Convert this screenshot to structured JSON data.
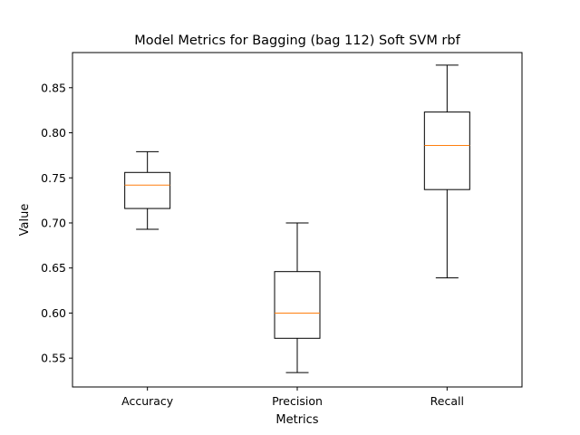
{
  "chart_data": {
    "type": "box",
    "title": "Model Metrics for Bagging (bag 112) Soft SVM rbf",
    "xlabel": "Metrics",
    "ylabel": "Value",
    "ylim": [
      0.518,
      0.889
    ],
    "yticks": [
      0.55,
      0.6,
      0.65,
      0.7,
      0.75,
      0.8,
      0.85
    ],
    "ytick_labels": [
      "0.55",
      "0.60",
      "0.65",
      "0.70",
      "0.75",
      "0.80",
      "0.85"
    ],
    "categories": [
      "Accuracy",
      "Precision",
      "Recall"
    ],
    "boxes": [
      {
        "min": 0.693,
        "q1": 0.716,
        "median": 0.742,
        "q3": 0.756,
        "max": 0.779
      },
      {
        "min": 0.534,
        "q1": 0.572,
        "median": 0.6,
        "q3": 0.646,
        "max": 0.7
      },
      {
        "min": 0.639,
        "q1": 0.737,
        "median": 0.786,
        "q3": 0.823,
        "max": 0.875
      }
    ],
    "colors": {
      "box": "#000000",
      "median": "#ff7f0e",
      "axes": "#000000",
      "background": "#ffffff"
    },
    "grid": false,
    "legend": "none"
  }
}
